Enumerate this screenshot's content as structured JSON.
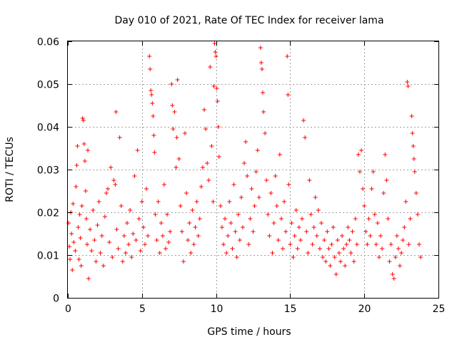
{
  "chart_data": {
    "type": "scatter",
    "title": "Day 010 of 2021, Rate Of TEC Index for receiver lama",
    "xlabel": "GPS time / hours",
    "ylabel": "ROTI / TECUs",
    "xlim": [
      0,
      25
    ],
    "ylim": [
      0,
      0.06
    ],
    "x_ticks": [
      "0",
      "5",
      "10",
      "15",
      "20",
      "25"
    ],
    "y_ticks": [
      "0",
      "0.01",
      "0.02",
      "0.03",
      "0.04",
      "0.05",
      "0.06"
    ],
    "grid": true,
    "legend": "none",
    "marker": "plus",
    "color": "#ff0000",
    "series": [
      {
        "values": [
          [
            0.05,
            0.0175
          ],
          [
            0.1,
            0.012
          ],
          [
            0.15,
            0.009
          ],
          [
            0.2,
            0.02
          ],
          [
            0.25,
            0.015
          ],
          [
            0.3,
            0.0065
          ],
          [
            0.35,
            0.022
          ],
          [
            0.4,
            0.013
          ],
          [
            0.5,
            0.011
          ],
          [
            0.55,
            0.026
          ],
          [
            0.6,
            0.031
          ],
          [
            0.65,
            0.0355
          ],
          [
            0.7,
            0.0165
          ],
          [
            0.75,
            0.009
          ],
          [
            0.8,
            0.0195
          ],
          [
            0.85,
            0.014
          ],
          [
            0.9,
            0.0075
          ],
          [
            0.95,
            0.0215
          ],
          [
            1.0,
            0.042
          ],
          [
            1.05,
            0.0415
          ],
          [
            1.1,
            0.036
          ],
          [
            1.15,
            0.032
          ],
          [
            1.2,
            0.025
          ],
          [
            1.25,
            0.0185
          ],
          [
            1.3,
            0.0125
          ],
          [
            1.35,
            0.0345
          ],
          [
            1.4,
            0.0045
          ],
          [
            1.5,
            0.016
          ],
          [
            1.6,
            0.011
          ],
          [
            1.7,
            0.0205
          ],
          [
            1.8,
            0.0135
          ],
          [
            1.9,
            0.0085
          ],
          [
            2.0,
            0.017
          ],
          [
            2.1,
            0.0225
          ],
          [
            2.2,
            0.0105
          ],
          [
            2.3,
            0.0145
          ],
          [
            2.4,
            0.0075
          ],
          [
            2.5,
            0.019
          ],
          [
            2.6,
            0.0245
          ],
          [
            2.7,
            0.0255
          ],
          [
            2.8,
            0.013
          ],
          [
            2.9,
            0.0305
          ],
          [
            3.0,
            0.0095
          ],
          [
            3.1,
            0.0275
          ],
          [
            3.2,
            0.0265
          ],
          [
            3.25,
            0.0435
          ],
          [
            3.3,
            0.016
          ],
          [
            3.4,
            0.0115
          ],
          [
            3.5,
            0.0375
          ],
          [
            3.6,
            0.0215
          ],
          [
            3.7,
            0.0085
          ],
          [
            3.8,
            0.0145
          ],
          [
            3.9,
            0.0105
          ],
          [
            4.0,
            0.0175
          ],
          [
            4.1,
            0.0125
          ],
          [
            4.2,
            0.0205
          ],
          [
            4.3,
            0.0095
          ],
          [
            4.4,
            0.015
          ],
          [
            4.5,
            0.0285
          ],
          [
            4.6,
            0.0135
          ],
          [
            4.7,
            0.0345
          ],
          [
            4.8,
            0.0185
          ],
          [
            4.9,
            0.011
          ],
          [
            5.0,
            0.0225
          ],
          [
            5.1,
            0.0165
          ],
          [
            5.2,
            0.0125
          ],
          [
            5.3,
            0.0255
          ],
          [
            5.4,
            0.0145
          ],
          [
            5.5,
            0.0565
          ],
          [
            5.55,
            0.0535
          ],
          [
            5.6,
            0.0485
          ],
          [
            5.65,
            0.0475
          ],
          [
            5.7,
            0.0455
          ],
          [
            5.75,
            0.0425
          ],
          [
            5.8,
            0.038
          ],
          [
            5.85,
            0.034
          ],
          [
            5.9,
            0.0195
          ],
          [
            6.0,
            0.0135
          ],
          [
            6.1,
            0.0225
          ],
          [
            6.2,
            0.0105
          ],
          [
            6.3,
            0.0175
          ],
          [
            6.4,
            0.0145
          ],
          [
            6.5,
            0.0265
          ],
          [
            6.6,
            0.0115
          ],
          [
            6.7,
            0.0195
          ],
          [
            6.8,
            0.013
          ],
          [
            6.9,
            0.0155
          ],
          [
            7.0,
            0.05
          ],
          [
            7.05,
            0.045
          ],
          [
            7.1,
            0.0395
          ],
          [
            7.2,
            0.0435
          ],
          [
            7.3,
            0.0305
          ],
          [
            7.35,
            0.0375
          ],
          [
            7.4,
            0.051
          ],
          [
            7.5,
            0.0325
          ],
          [
            7.6,
            0.0215
          ],
          [
            7.7,
            0.0155
          ],
          [
            7.8,
            0.0085
          ],
          [
            7.9,
            0.0385
          ],
          [
            8.0,
            0.0245
          ],
          [
            8.1,
            0.0135
          ],
          [
            8.2,
            0.0175
          ],
          [
            8.3,
            0.0105
          ],
          [
            8.4,
            0.0205
          ],
          [
            8.5,
            0.0125
          ],
          [
            8.6,
            0.0165
          ],
          [
            8.7,
            0.0225
          ],
          [
            8.8,
            0.0145
          ],
          [
            8.9,
            0.0185
          ],
          [
            9.0,
            0.026
          ],
          [
            9.1,
            0.0305
          ],
          [
            9.2,
            0.044
          ],
          [
            9.3,
            0.0395
          ],
          [
            9.4,
            0.0315
          ],
          [
            9.5,
            0.0275
          ],
          [
            9.6,
            0.054
          ],
          [
            9.7,
            0.0355
          ],
          [
            9.8,
            0.0225
          ],
          [
            9.85,
            0.0495
          ],
          [
            9.9,
            0.0595
          ],
          [
            9.95,
            0.0575
          ],
          [
            10.0,
            0.0565
          ],
          [
            10.05,
            0.049
          ],
          [
            10.1,
            0.046
          ],
          [
            10.15,
            0.04
          ],
          [
            10.2,
            0.033
          ],
          [
            10.3,
            0.0215
          ],
          [
            10.4,
            0.0165
          ],
          [
            10.5,
            0.0125
          ],
          [
            10.6,
            0.0185
          ],
          [
            10.7,
            0.0105
          ],
          [
            10.8,
            0.0145
          ],
          [
            10.9,
            0.0225
          ],
          [
            11.0,
            0.0175
          ],
          [
            11.1,
            0.0115
          ],
          [
            11.2,
            0.0265
          ],
          [
            11.3,
            0.0155
          ],
          [
            11.4,
            0.0095
          ],
          [
            11.5,
            0.0195
          ],
          [
            11.6,
            0.0135
          ],
          [
            11.7,
            0.0235
          ],
          [
            11.8,
            0.0165
          ],
          [
            11.9,
            0.0315
          ],
          [
            12.0,
            0.0365
          ],
          [
            12.1,
            0.0285
          ],
          [
            12.2,
            0.0125
          ],
          [
            12.3,
            0.0185
          ],
          [
            12.4,
            0.0255
          ],
          [
            12.5,
            0.0155
          ],
          [
            12.6,
            0.0215
          ],
          [
            12.7,
            0.0295
          ],
          [
            12.8,
            0.0345
          ],
          [
            12.9,
            0.0235
          ],
          [
            13.0,
            0.0585
          ],
          [
            13.05,
            0.055
          ],
          [
            13.1,
            0.0535
          ],
          [
            13.15,
            0.048
          ],
          [
            13.2,
            0.0435
          ],
          [
            13.3,
            0.0385
          ],
          [
            13.4,
            0.0275
          ],
          [
            13.5,
            0.0195
          ],
          [
            13.6,
            0.0145
          ],
          [
            13.7,
            0.0245
          ],
          [
            13.8,
            0.0105
          ],
          [
            13.9,
            0.0175
          ],
          [
            14.0,
            0.0285
          ],
          [
            14.1,
            0.0215
          ],
          [
            14.2,
            0.0135
          ],
          [
            14.3,
            0.0335
          ],
          [
            14.4,
            0.0185
          ],
          [
            14.5,
            0.0115
          ],
          [
            14.6,
            0.0225
          ],
          [
            14.7,
            0.0155
          ],
          [
            14.8,
            0.0565
          ],
          [
            14.85,
            0.0475
          ],
          [
            14.9,
            0.0265
          ],
          [
            15.0,
            0.0125
          ],
          [
            15.1,
            0.0175
          ],
          [
            15.2,
            0.0095
          ],
          [
            15.3,
            0.0145
          ],
          [
            15.4,
            0.0205
          ],
          [
            15.5,
            0.0115
          ],
          [
            15.6,
            0.0165
          ],
          [
            15.7,
            0.0135
          ],
          [
            15.8,
            0.0185
          ],
          [
            15.9,
            0.0415
          ],
          [
            16.0,
            0.0375
          ],
          [
            16.1,
            0.0155
          ],
          [
            16.2,
            0.0105
          ],
          [
            16.3,
            0.0275
          ],
          [
            16.4,
            0.0195
          ],
          [
            16.5,
            0.0125
          ],
          [
            16.6,
            0.0165
          ],
          [
            16.7,
            0.0235
          ],
          [
            16.8,
            0.0145
          ],
          [
            16.9,
            0.0205
          ],
          [
            17.0,
            0.0115
          ],
          [
            17.1,
            0.0175
          ],
          [
            17.2,
            0.0095
          ],
          [
            17.3,
            0.0135
          ],
          [
            17.4,
            0.0085
          ],
          [
            17.5,
            0.0155
          ],
          [
            17.6,
            0.0115
          ],
          [
            17.7,
            0.0075
          ],
          [
            17.8,
            0.0125
          ],
          [
            17.9,
            0.0165
          ],
          [
            18.0,
            0.0095
          ],
          [
            18.1,
            0.0055
          ],
          [
            18.2,
            0.0135
          ],
          [
            18.3,
            0.0105
          ],
          [
            18.4,
            0.0085
          ],
          [
            18.5,
            0.0145
          ],
          [
            18.6,
            0.0115
          ],
          [
            18.7,
            0.0075
          ],
          [
            18.8,
            0.0125
          ],
          [
            18.9,
            0.0165
          ],
          [
            19.0,
            0.0135
          ],
          [
            19.1,
            0.0105
          ],
          [
            19.2,
            0.0155
          ],
          [
            19.3,
            0.0085
          ],
          [
            19.4,
            0.0185
          ],
          [
            19.5,
            0.0125
          ],
          [
            19.6,
            0.0335
          ],
          [
            19.7,
            0.0295
          ],
          [
            19.8,
            0.0345
          ],
          [
            19.9,
            0.0255
          ],
          [
            20.0,
            0.0215
          ],
          [
            20.1,
            0.0155
          ],
          [
            20.2,
            0.0125
          ],
          [
            20.3,
            0.0185
          ],
          [
            20.4,
            0.0145
          ],
          [
            20.5,
            0.0255
          ],
          [
            20.6,
            0.0295
          ],
          [
            20.7,
            0.0195
          ],
          [
            20.8,
            0.0125
          ],
          [
            20.9,
            0.0175
          ],
          [
            21.0,
            0.0095
          ],
          [
            21.1,
            0.0145
          ],
          [
            21.2,
            0.0115
          ],
          [
            21.3,
            0.0245
          ],
          [
            21.4,
            0.0335
          ],
          [
            21.5,
            0.0275
          ],
          [
            21.6,
            0.0185
          ],
          [
            21.7,
            0.0085
          ],
          [
            21.8,
            0.0125
          ],
          [
            21.9,
            0.0055
          ],
          [
            22.0,
            0.0045
          ],
          [
            22.1,
            0.0095
          ],
          [
            22.2,
            0.0145
          ],
          [
            22.3,
            0.0115
          ],
          [
            22.4,
            0.0075
          ],
          [
            22.5,
            0.0105
          ],
          [
            22.6,
            0.0135
          ],
          [
            22.7,
            0.0165
          ],
          [
            22.8,
            0.0225
          ],
          [
            22.9,
            0.0505
          ],
          [
            22.95,
            0.0495
          ],
          [
            23.0,
            0.0125
          ],
          [
            23.1,
            0.0185
          ],
          [
            23.2,
            0.0425
          ],
          [
            23.25,
            0.0385
          ],
          [
            23.3,
            0.0355
          ],
          [
            23.35,
            0.0325
          ],
          [
            23.4,
            0.0295
          ],
          [
            23.5,
            0.0245
          ],
          [
            23.6,
            0.0195
          ],
          [
            23.7,
            0.0125
          ],
          [
            23.8,
            0.0095
          ]
        ]
      }
    ]
  }
}
